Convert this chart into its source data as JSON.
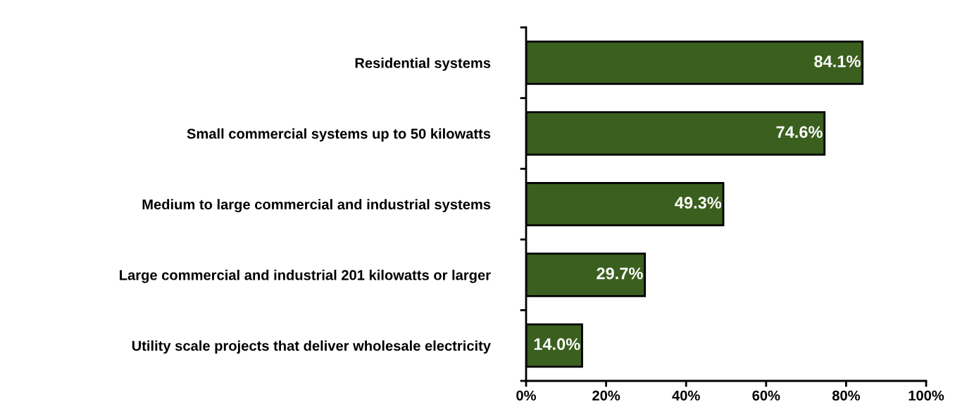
{
  "chart_data": {
    "type": "bar",
    "orientation": "horizontal",
    "categories": [
      "Residential systems",
      "Small commercial systems up to 50 kilowatts",
      "Medium to large commercial and industrial systems",
      "Large commercial and industrial 201 kilowatts or larger",
      "Utility scale projects that deliver wholesale electricity"
    ],
    "values": [
      84.1,
      74.6,
      49.3,
      29.7,
      14.0
    ],
    "value_labels": [
      "84.1%",
      "74.6%",
      "49.3%",
      "29.7%",
      "14.0%"
    ],
    "color": "#3a5f1e",
    "xlim": [
      0,
      100
    ],
    "xticks": [
      {
        "value": 0,
        "label": "0%"
      },
      {
        "value": 20,
        "label": "20%"
      },
      {
        "value": 40,
        "label": "40%"
      },
      {
        "value": 60,
        "label": "60%"
      },
      {
        "value": 80,
        "label": "80%"
      },
      {
        "value": 100,
        "label": "100%"
      }
    ],
    "grid": false
  }
}
